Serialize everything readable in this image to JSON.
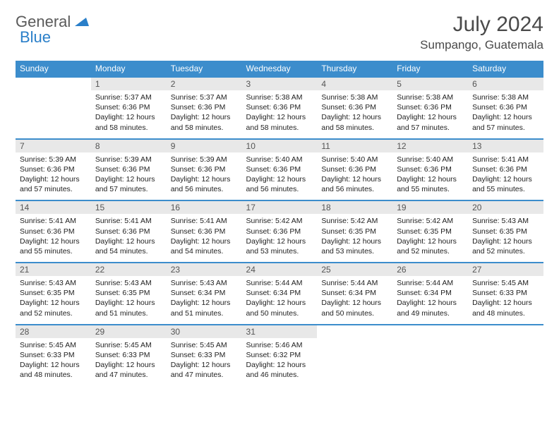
{
  "logo": {
    "general": "General",
    "blue": "Blue"
  },
  "title": "July 2024",
  "location": "Sumpango, Guatemala",
  "dow": [
    "Sunday",
    "Monday",
    "Tuesday",
    "Wednesday",
    "Thursday",
    "Friday",
    "Saturday"
  ],
  "colors": {
    "header_bg": "#3c8dcc",
    "header_text": "#ffffff",
    "daynum_bg": "#e8e8e8",
    "border": "#3c8dcc",
    "body_text": "#222222",
    "title_text": "#4a4a4a"
  },
  "typography": {
    "title_fontsize": 30,
    "location_fontsize": 17,
    "dow_fontsize": 12,
    "daynum_fontsize": 12,
    "body_fontsize": 10.5
  },
  "layout": {
    "cols": 7,
    "rows": 5,
    "start_offset": 1,
    "days_in_month": 31
  },
  "days": {
    "1": {
      "n": "1",
      "sr": "Sunrise: 5:37 AM",
      "ss": "Sunset: 6:36 PM",
      "d1": "Daylight: 12 hours",
      "d2": "and 58 minutes."
    },
    "2": {
      "n": "2",
      "sr": "Sunrise: 5:37 AM",
      "ss": "Sunset: 6:36 PM",
      "d1": "Daylight: 12 hours",
      "d2": "and 58 minutes."
    },
    "3": {
      "n": "3",
      "sr": "Sunrise: 5:38 AM",
      "ss": "Sunset: 6:36 PM",
      "d1": "Daylight: 12 hours",
      "d2": "and 58 minutes."
    },
    "4": {
      "n": "4",
      "sr": "Sunrise: 5:38 AM",
      "ss": "Sunset: 6:36 PM",
      "d1": "Daylight: 12 hours",
      "d2": "and 58 minutes."
    },
    "5": {
      "n": "5",
      "sr": "Sunrise: 5:38 AM",
      "ss": "Sunset: 6:36 PM",
      "d1": "Daylight: 12 hours",
      "d2": "and 57 minutes."
    },
    "6": {
      "n": "6",
      "sr": "Sunrise: 5:38 AM",
      "ss": "Sunset: 6:36 PM",
      "d1": "Daylight: 12 hours",
      "d2": "and 57 minutes."
    },
    "7": {
      "n": "7",
      "sr": "Sunrise: 5:39 AM",
      "ss": "Sunset: 6:36 PM",
      "d1": "Daylight: 12 hours",
      "d2": "and 57 minutes."
    },
    "8": {
      "n": "8",
      "sr": "Sunrise: 5:39 AM",
      "ss": "Sunset: 6:36 PM",
      "d1": "Daylight: 12 hours",
      "d2": "and 57 minutes."
    },
    "9": {
      "n": "9",
      "sr": "Sunrise: 5:39 AM",
      "ss": "Sunset: 6:36 PM",
      "d1": "Daylight: 12 hours",
      "d2": "and 56 minutes."
    },
    "10": {
      "n": "10",
      "sr": "Sunrise: 5:40 AM",
      "ss": "Sunset: 6:36 PM",
      "d1": "Daylight: 12 hours",
      "d2": "and 56 minutes."
    },
    "11": {
      "n": "11",
      "sr": "Sunrise: 5:40 AM",
      "ss": "Sunset: 6:36 PM",
      "d1": "Daylight: 12 hours",
      "d2": "and 56 minutes."
    },
    "12": {
      "n": "12",
      "sr": "Sunrise: 5:40 AM",
      "ss": "Sunset: 6:36 PM",
      "d1": "Daylight: 12 hours",
      "d2": "and 55 minutes."
    },
    "13": {
      "n": "13",
      "sr": "Sunrise: 5:41 AM",
      "ss": "Sunset: 6:36 PM",
      "d1": "Daylight: 12 hours",
      "d2": "and 55 minutes."
    },
    "14": {
      "n": "14",
      "sr": "Sunrise: 5:41 AM",
      "ss": "Sunset: 6:36 PM",
      "d1": "Daylight: 12 hours",
      "d2": "and 55 minutes."
    },
    "15": {
      "n": "15",
      "sr": "Sunrise: 5:41 AM",
      "ss": "Sunset: 6:36 PM",
      "d1": "Daylight: 12 hours",
      "d2": "and 54 minutes."
    },
    "16": {
      "n": "16",
      "sr": "Sunrise: 5:41 AM",
      "ss": "Sunset: 6:36 PM",
      "d1": "Daylight: 12 hours",
      "d2": "and 54 minutes."
    },
    "17": {
      "n": "17",
      "sr": "Sunrise: 5:42 AM",
      "ss": "Sunset: 6:36 PM",
      "d1": "Daylight: 12 hours",
      "d2": "and 53 minutes."
    },
    "18": {
      "n": "18",
      "sr": "Sunrise: 5:42 AM",
      "ss": "Sunset: 6:35 PM",
      "d1": "Daylight: 12 hours",
      "d2": "and 53 minutes."
    },
    "19": {
      "n": "19",
      "sr": "Sunrise: 5:42 AM",
      "ss": "Sunset: 6:35 PM",
      "d1": "Daylight: 12 hours",
      "d2": "and 52 minutes."
    },
    "20": {
      "n": "20",
      "sr": "Sunrise: 5:43 AM",
      "ss": "Sunset: 6:35 PM",
      "d1": "Daylight: 12 hours",
      "d2": "and 52 minutes."
    },
    "21": {
      "n": "21",
      "sr": "Sunrise: 5:43 AM",
      "ss": "Sunset: 6:35 PM",
      "d1": "Daylight: 12 hours",
      "d2": "and 52 minutes."
    },
    "22": {
      "n": "22",
      "sr": "Sunrise: 5:43 AM",
      "ss": "Sunset: 6:35 PM",
      "d1": "Daylight: 12 hours",
      "d2": "and 51 minutes."
    },
    "23": {
      "n": "23",
      "sr": "Sunrise: 5:43 AM",
      "ss": "Sunset: 6:34 PM",
      "d1": "Daylight: 12 hours",
      "d2": "and 51 minutes."
    },
    "24": {
      "n": "24",
      "sr": "Sunrise: 5:44 AM",
      "ss": "Sunset: 6:34 PM",
      "d1": "Daylight: 12 hours",
      "d2": "and 50 minutes."
    },
    "25": {
      "n": "25",
      "sr": "Sunrise: 5:44 AM",
      "ss": "Sunset: 6:34 PM",
      "d1": "Daylight: 12 hours",
      "d2": "and 50 minutes."
    },
    "26": {
      "n": "26",
      "sr": "Sunrise: 5:44 AM",
      "ss": "Sunset: 6:34 PM",
      "d1": "Daylight: 12 hours",
      "d2": "and 49 minutes."
    },
    "27": {
      "n": "27",
      "sr": "Sunrise: 5:45 AM",
      "ss": "Sunset: 6:33 PM",
      "d1": "Daylight: 12 hours",
      "d2": "and 48 minutes."
    },
    "28": {
      "n": "28",
      "sr": "Sunrise: 5:45 AM",
      "ss": "Sunset: 6:33 PM",
      "d1": "Daylight: 12 hours",
      "d2": "and 48 minutes."
    },
    "29": {
      "n": "29",
      "sr": "Sunrise: 5:45 AM",
      "ss": "Sunset: 6:33 PM",
      "d1": "Daylight: 12 hours",
      "d2": "and 47 minutes."
    },
    "30": {
      "n": "30",
      "sr": "Sunrise: 5:45 AM",
      "ss": "Sunset: 6:33 PM",
      "d1": "Daylight: 12 hours",
      "d2": "and 47 minutes."
    },
    "31": {
      "n": "31",
      "sr": "Sunrise: 5:46 AM",
      "ss": "Sunset: 6:32 PM",
      "d1": "Daylight: 12 hours",
      "d2": "and 46 minutes."
    }
  }
}
